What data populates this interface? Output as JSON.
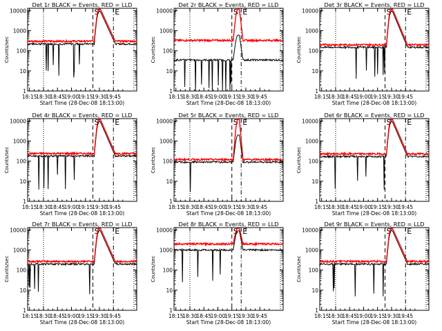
{
  "figure": {
    "xlabel": "Start Time (28-Dec-08 18:13:00)",
    "ylabel": "Counts/sec",
    "x_tick_labels": [
      "18:15",
      "18:30",
      "18:45",
      "19:00",
      "19:15",
      "19:30",
      "19:45"
    ],
    "y_tick_labels": [
      "1",
      "10",
      "100",
      "1000",
      "10000"
    ],
    "event_markers": [
      "S",
      "E"
    ],
    "colors": {
      "events": "#000000",
      "lld": "#ff0000"
    }
  },
  "chart_data": [
    {
      "type": "line",
      "title": "Det 1r BLACK = Events, RED = LLD",
      "ylim": [
        1,
        13000
      ],
      "xlim_minutes": [
        0,
        117
      ],
      "series": [
        {
          "name": "Events",
          "color": "#000000",
          "base": 220,
          "peak": 9000
        },
        {
          "name": "LLD",
          "color": "#ff0000",
          "base": 300,
          "peak": 12000
        }
      ],
      "markers": {
        "S": 70,
        "E": 92
      }
    },
    {
      "type": "line",
      "title": "Det 2r BLACK = Events, RED = LLD",
      "ylim": [
        1,
        13000
      ],
      "xlim_minutes": [
        0,
        117
      ],
      "series": [
        {
          "name": "Events",
          "color": "#000000",
          "base": 35,
          "peak": 600
        },
        {
          "name": "LLD",
          "color": "#ff0000",
          "base": 330,
          "peak": 12000
        }
      ],
      "markers": {
        "S": 62,
        "E": 72
      }
    },
    {
      "type": "line",
      "title": "Det 3r BLACK = Events, RED = LLD",
      "ylim": [
        1,
        13000
      ],
      "xlim_minutes": [
        0,
        117
      ],
      "series": [
        {
          "name": "Events",
          "color": "#000000",
          "base": 150,
          "peak": 9000
        },
        {
          "name": "LLD",
          "color": "#ff0000",
          "base": 200,
          "peak": 12000
        }
      ],
      "markers": {
        "S": 70,
        "E": 92
      }
    },
    {
      "type": "line",
      "title": "Det 4r BLACK = Events, RED = LLD",
      "ylim": [
        1,
        13000
      ],
      "xlim_minutes": [
        0,
        117
      ],
      "series": [
        {
          "name": "Events",
          "color": "#000000",
          "base": 180,
          "peak": 9000
        },
        {
          "name": "LLD",
          "color": "#ff0000",
          "base": 240,
          "peak": 12000
        }
      ],
      "markers": {
        "S": 70,
        "E": 92
      }
    },
    {
      "type": "line",
      "title": "Det 5r BLACK = Events, RED = LLD",
      "ylim": [
        1,
        13000
      ],
      "xlim_minutes": [
        0,
        117
      ],
      "series": [
        {
          "name": "Events",
          "color": "#000000",
          "base": 90,
          "peak": 2000
        },
        {
          "name": "LLD",
          "color": "#ff0000",
          "base": 120,
          "peak": 12000
        }
      ],
      "markers": {
        "S": 62,
        "E": 72
      }
    },
    {
      "type": "line",
      "title": "Det 6r BLACK = Events, RED = LLD",
      "ylim": [
        1,
        13000
      ],
      "xlim_minutes": [
        0,
        117
      ],
      "series": [
        {
          "name": "Events",
          "color": "#000000",
          "base": 170,
          "peak": 9000
        },
        {
          "name": "LLD",
          "color": "#ff0000",
          "base": 230,
          "peak": 12000
        }
      ],
      "markers": {
        "S": 70,
        "E": 92
      }
    },
    {
      "type": "line",
      "title": "Det 7r BLACK = Events, RED = LLD",
      "ylim": [
        1,
        13000
      ],
      "xlim_minutes": [
        0,
        117
      ],
      "series": [
        {
          "name": "Events",
          "color": "#000000",
          "base": 200,
          "peak": 9000
        },
        {
          "name": "LLD",
          "color": "#ff0000",
          "base": 270,
          "peak": 12000
        }
      ],
      "markers": {
        "S": 70,
        "E": 92
      }
    },
    {
      "type": "line",
      "title": "Det 8r BLACK = Events, RED = LLD",
      "ylim": [
        1,
        13000
      ],
      "xlim_minutes": [
        0,
        117
      ],
      "series": [
        {
          "name": "Events",
          "color": "#000000",
          "base": 1000,
          "peak": 9000
        },
        {
          "name": "LLD",
          "color": "#ff0000",
          "base": 2000,
          "peak": 12000
        }
      ],
      "markers": {
        "S": 62,
        "E": 72
      }
    },
    {
      "type": "line",
      "title": "Det 9r BLACK = Events, RED = LLD",
      "ylim": [
        1,
        13000
      ],
      "xlim_minutes": [
        0,
        117
      ],
      "series": [
        {
          "name": "Events",
          "color": "#000000",
          "base": 200,
          "peak": 9000
        },
        {
          "name": "LLD",
          "color": "#ff0000",
          "base": 270,
          "peak": 12000
        }
      ],
      "markers": {
        "S": 70,
        "E": 92
      }
    }
  ]
}
